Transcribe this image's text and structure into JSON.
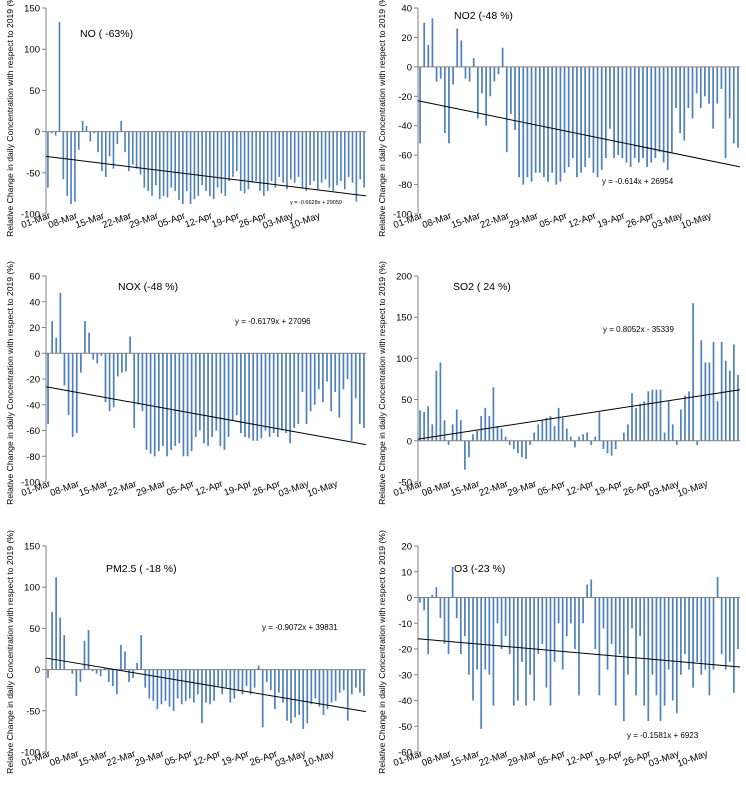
{
  "figure": {
    "ylabel": "Relative Change in daily Concentration with respect to 2019 (%)"
  },
  "colors": {
    "bar": "#4f81bd",
    "axis": "#808080",
    "trend": "#000000",
    "text": "#000000"
  },
  "chart_data": [
    {
      "type": "bar",
      "title": "NO ( -63%)",
      "trend_label": "y = -0.6628x + 29050",
      "ylim": [
        -100,
        150
      ],
      "yticks": [
        -100,
        -50,
        0,
        50,
        100,
        150
      ],
      "xlabel": "",
      "xticks": [
        "01-Mar",
        "08-Mar",
        "15-Mar",
        "22-Mar",
        "29-Mar",
        "05-Apr",
        "12-Apr",
        "19-Apr",
        "26-Apr",
        "03-May",
        "10-May"
      ],
      "trend": [
        -30,
        -78
      ],
      "values": [
        -68,
        -2,
        -5,
        133,
        -58,
        -78,
        -88,
        -85,
        -22,
        13,
        7,
        -12,
        -2,
        -25,
        -48,
        -55,
        -30,
        -45,
        -15,
        13,
        -25,
        -48,
        -40,
        -45,
        -52,
        -68,
        -72,
        -78,
        -65,
        -82,
        -78,
        -80,
        -68,
        -72,
        -83,
        -88,
        -72,
        -88,
        -82,
        -78,
        -65,
        -72,
        -78,
        -82,
        -68,
        -75,
        -78,
        -60,
        -55,
        -48,
        -72,
        -75,
        -70,
        -62,
        -60,
        -72,
        -78,
        -72,
        -60,
        -68,
        -55,
        -62,
        -70,
        -58,
        -62,
        -55,
        -68,
        -72,
        -65,
        -60,
        -70,
        -62,
        -58,
        -68,
        -72,
        -65,
        -60,
        -70,
        -55,
        -62,
        -85,
        -58,
        -68
      ]
    },
    {
      "type": "bar",
      "title": "NO2 (-48 %)",
      "trend_label": "y = -0.614x + 26954",
      "ylim": [
        -100,
        40
      ],
      "yticks": [
        -100,
        -80,
        -60,
        -40,
        -20,
        0,
        20,
        40
      ],
      "xlabel": "",
      "xticks": [
        "01-Mar",
        "08-Mar",
        "15-Mar",
        "22-Mar",
        "29-Mar",
        "05-Apr",
        "12-Apr",
        "19-Apr",
        "26-Apr",
        "03-May",
        "10-May"
      ],
      "trend": [
        -23,
        -68
      ],
      "values": [
        -52,
        30,
        15,
        33,
        -10,
        -8,
        -45,
        -52,
        -12,
        26,
        18,
        -8,
        -10,
        6,
        -35,
        -18,
        -40,
        -20,
        -10,
        -5,
        13,
        -58,
        -32,
        -43,
        -75,
        -80,
        -75,
        -78,
        -72,
        -72,
        -75,
        -78,
        -72,
        -80,
        -78,
        -72,
        -68,
        -62,
        -75,
        -72,
        -68,
        -62,
        -72,
        -75,
        -70,
        -62,
        -42,
        -62,
        -60,
        -62,
        -65,
        -68,
        -62,
        -65,
        -62,
        -68,
        -65,
        -62,
        -58,
        -65,
        -70,
        -58,
        -28,
        -45,
        -50,
        -28,
        -35,
        -18,
        -28,
        -20,
        -25,
        -42,
        -25,
        -15,
        -62,
        -35,
        -52,
        -55
      ]
    },
    {
      "type": "bar",
      "title": "NOX (-48 %)",
      "trend_label": "y = -0.6179x + 27096",
      "ylim": [
        -100,
        60
      ],
      "yticks": [
        -100,
        -80,
        -60,
        -40,
        -20,
        0,
        20,
        40,
        60
      ],
      "xlabel": "",
      "xticks": [
        "01-Mar",
        "08-Mar",
        "15-Mar",
        "22-Mar",
        "29-Mar",
        "05-Apr",
        "12-Apr",
        "19-Apr",
        "26-Apr",
        "03-May",
        "10-May"
      ],
      "trend": [
        -26,
        -71
      ],
      "values": [
        -55,
        25,
        12,
        47,
        -25,
        -48,
        -65,
        -62,
        -15,
        25,
        16,
        -5,
        -8,
        -2,
        -38,
        -45,
        -42,
        -18,
        -15,
        -14,
        13,
        -58,
        -40,
        -45,
        -75,
        -78,
        -80,
        -76,
        -72,
        -80,
        -75,
        -72,
        -70,
        -80,
        -80,
        -76,
        -65,
        -60,
        -70,
        -72,
        -65,
        -60,
        -72,
        -75,
        -65,
        -52,
        -48,
        -62,
        -65,
        -66,
        -68,
        -68,
        -66,
        -60,
        -65,
        -62,
        -65,
        -60,
        -62,
        -70,
        -58,
        -55,
        -30,
        -55,
        -45,
        -40,
        -28,
        -38,
        -22,
        -45,
        -30,
        -50,
        -28,
        -20,
        -68,
        -35,
        -55,
        -58
      ]
    },
    {
      "type": "bar",
      "title": "SO2 ( 24 %)",
      "trend_label": "y = 0.8052x - 35339",
      "ylim": [
        -50,
        200
      ],
      "yticks": [
        -50,
        0,
        50,
        100,
        150,
        200
      ],
      "xlabel": "",
      "xticks": [
        "01-Mar",
        "08-Mar",
        "15-Mar",
        "22-Mar",
        "29-Mar",
        "05-Apr",
        "12-Apr",
        "19-Apr",
        "26-Apr",
        "03-May",
        "10-May"
      ],
      "trend": [
        2,
        62
      ],
      "values": [
        37,
        35,
        42,
        20,
        85,
        95,
        25,
        -5,
        20,
        38,
        25,
        -35,
        -20,
        8,
        12,
        30,
        40,
        30,
        65,
        18,
        15,
        5,
        -5,
        -10,
        -15,
        -20,
        -22,
        -5,
        10,
        20,
        25,
        28,
        30,
        18,
        40,
        28,
        15,
        5,
        -8,
        5,
        8,
        10,
        -5,
        5,
        35,
        -10,
        -15,
        -18,
        -10,
        0,
        10,
        20,
        58,
        40,
        45,
        48,
        60,
        62,
        62,
        62,
        10,
        48,
        20,
        -5,
        38,
        55,
        60,
        167,
        -5,
        122,
        95,
        95,
        120,
        48,
        120,
        97,
        85,
        117,
        80
      ]
    },
    {
      "type": "bar",
      "title": "PM2.5 ( -18 %)",
      "trend_label": "y = -0.9072x + 39831",
      "ylim": [
        -100,
        150
      ],
      "yticks": [
        -100,
        -50,
        0,
        50,
        100,
        150
      ],
      "xlabel": "",
      "xticks": [
        "01-Mar",
        "08-Mar",
        "15-Mar",
        "22-Mar",
        "29-Mar",
        "05-Apr",
        "12-Apr",
        "19-Apr",
        "26-Apr",
        "03-May",
        "10-May"
      ],
      "trend": [
        14,
        -51
      ],
      "values": [
        -10,
        70,
        112,
        63,
        42,
        0,
        -5,
        -32,
        -15,
        35,
        48,
        -2,
        -5,
        -8,
        2,
        -15,
        -20,
        -30,
        30,
        22,
        -15,
        -10,
        8,
        42,
        -22,
        -35,
        -38,
        -48,
        -42,
        -38,
        -45,
        -50,
        -35,
        -42,
        -38,
        -35,
        -40,
        -30,
        -65,
        -40,
        -42,
        -38,
        -20,
        -30,
        -22,
        -40,
        -35,
        -25,
        -30,
        -20,
        -30,
        -22,
        5,
        -70,
        -15,
        -25,
        -48,
        -28,
        -40,
        -62,
        -65,
        -58,
        -55,
        -72,
        -65,
        -42,
        -35,
        -45,
        -55,
        -48,
        -40,
        -38,
        -28,
        -25,
        -62,
        -30,
        -22,
        -28,
        -32
      ]
    },
    {
      "type": "bar",
      "title": "O3 (-23 %)",
      "trend_label": "y = -0.1581x + 6923",
      "ylim": [
        -60,
        20
      ],
      "yticks": [
        -60,
        -50,
        -40,
        -30,
        -20,
        -10,
        0,
        10,
        20
      ],
      "xlabel": "",
      "xticks": [
        "01-Mar",
        "08-Mar",
        "15-Mar",
        "22-Mar",
        "29-Mar",
        "05-Apr",
        "12-Apr",
        "19-Apr",
        "26-Apr",
        "03-May",
        "10-May"
      ],
      "trend": [
        -16,
        -27
      ],
      "values": [
        -2,
        -5,
        -22,
        1,
        4,
        -8,
        -18,
        -22,
        12,
        -8,
        -22,
        -15,
        -30,
        -40,
        -28,
        -51,
        -28,
        -30,
        -42,
        -10,
        -20,
        -15,
        -22,
        -42,
        -40,
        -25,
        -42,
        -30,
        -40,
        -22,
        -18,
        -35,
        -42,
        -25,
        -10,
        -28,
        -15,
        -10,
        -20,
        -38,
        -10,
        5,
        7,
        -20,
        -38,
        -12,
        -28,
        -18,
        -42,
        -22,
        -48,
        -30,
        -12,
        -38,
        -15,
        -42,
        -48,
        -30,
        -38,
        -48,
        -42,
        -28,
        -40,
        -45,
        -30,
        -22,
        -28,
        -35,
        -25,
        -30,
        -28,
        -38,
        -28,
        8,
        -22,
        -28,
        -25,
        -37,
        -20
      ]
    }
  ]
}
